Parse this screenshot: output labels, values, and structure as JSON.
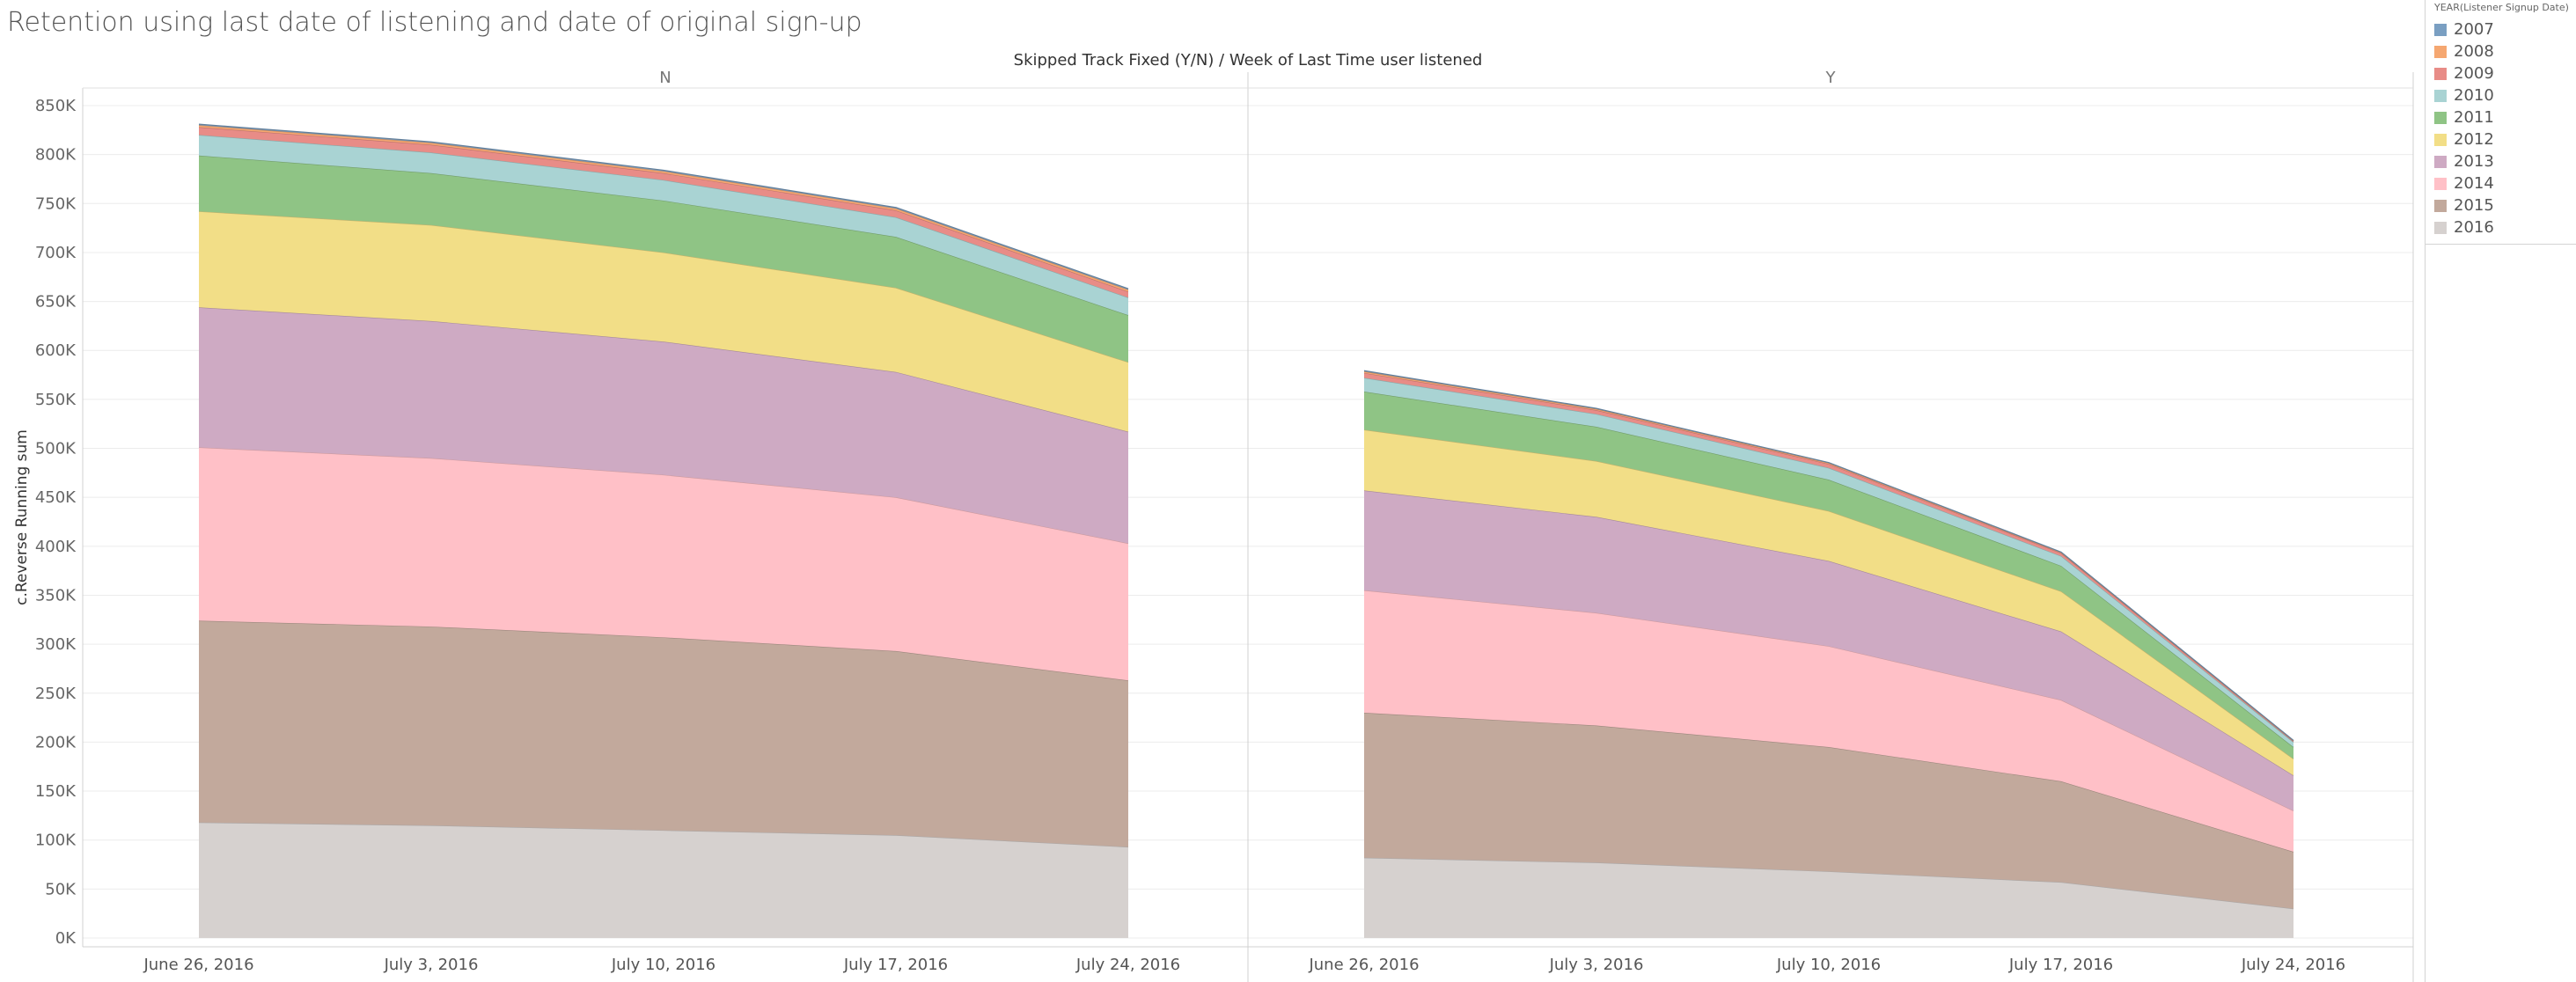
{
  "page": {
    "title": "Retention using last date of listening and date of original sign-up"
  },
  "legend": {
    "title": "YEAR(Listener Signup Date)",
    "items": [
      {
        "label": "2007",
        "color": "#7a9fc2"
      },
      {
        "label": "2008",
        "color": "#f5a771"
      },
      {
        "label": "2009",
        "color": "#e88c87"
      },
      {
        "label": "2010",
        "color": "#a9d3d3"
      },
      {
        "label": "2011",
        "color": "#8fc485"
      },
      {
        "label": "2012",
        "color": "#f2de87"
      },
      {
        "label": "2013",
        "color": "#ceaac3"
      },
      {
        "label": "2014",
        "color": "#ffc0c7"
      },
      {
        "label": "2015",
        "color": "#c2a99c"
      },
      {
        "label": "2016",
        "color": "#d6d1cf"
      }
    ]
  },
  "chart_data": {
    "type": "area",
    "header": "Skipped Track Fixed (Y/N)  /  Week of Last Time user listened",
    "ylabel": "c.Reverse Running sum",
    "ylim": [
      0,
      850000
    ],
    "yticks": [
      0,
      50000,
      100000,
      150000,
      200000,
      250000,
      300000,
      350000,
      400000,
      450000,
      500000,
      550000,
      600000,
      650000,
      700000,
      750000,
      800000,
      850000
    ],
    "ytick_labels": [
      "0K",
      "50K",
      "100K",
      "150K",
      "200K",
      "250K",
      "300K",
      "350K",
      "400K",
      "450K",
      "500K",
      "550K",
      "600K",
      "650K",
      "700K",
      "750K",
      "800K",
      "850K"
    ],
    "categories": [
      "June 26, 2016",
      "July 3, 2016",
      "July 10, 2016",
      "July 17, 2016",
      "July 24, 2016"
    ],
    "stacked": true,
    "grid": true,
    "legend_position": "right",
    "panels": [
      {
        "label": "N",
        "series": [
          {
            "name": "2016",
            "values": [
              118000,
              115000,
              110000,
              105000,
              93000
            ]
          },
          {
            "name": "2015",
            "values": [
              206000,
              203000,
              197000,
              188000,
              170000
            ]
          },
          {
            "name": "2014",
            "values": [
              177000,
              172000,
              166000,
              157000,
              140000
            ]
          },
          {
            "name": "2013",
            "values": [
              143000,
              140000,
              136000,
              128000,
              114000
            ]
          },
          {
            "name": "2012",
            "values": [
              98000,
              98000,
              91000,
              86000,
              71000
            ]
          },
          {
            "name": "2011",
            "values": [
              57000,
              53000,
              53000,
              52000,
              48000
            ]
          },
          {
            "name": "2010",
            "values": [
              21000,
              21000,
              21000,
              20000,
              18000
            ]
          },
          {
            "name": "2009",
            "values": [
              8000,
              8000,
              7000,
              7000,
              6000
            ]
          },
          {
            "name": "2008",
            "values": [
              2000,
              2000,
              2000,
              2000,
              2000
            ]
          },
          {
            "name": "2007",
            "values": [
              1000,
              1000,
              1000,
              1000,
              1000
            ]
          }
        ]
      },
      {
        "label": "Y",
        "series": [
          {
            "name": "2016",
            "values": [
              82000,
              77000,
              68000,
              57000,
              30000
            ]
          },
          {
            "name": "2015",
            "values": [
              148000,
              140000,
              127000,
              103000,
              58000
            ]
          },
          {
            "name": "2014",
            "values": [
              125000,
              115000,
              103000,
              83000,
              42000
            ]
          },
          {
            "name": "2013",
            "values": [
              102000,
              98000,
              87000,
              70000,
              36000
            ]
          },
          {
            "name": "2012",
            "values": [
              62000,
              57000,
              51000,
              41000,
              17000
            ]
          },
          {
            "name": "2011",
            "values": [
              39000,
              35000,
              32000,
              26000,
              12000
            ]
          },
          {
            "name": "2010",
            "values": [
              14000,
              13000,
              12000,
              10000,
              5000
            ]
          },
          {
            "name": "2009",
            "values": [
              5000,
              4000,
              4000,
              3000,
              1000
            ]
          },
          {
            "name": "2008",
            "values": [
              1500,
              1200,
              1000,
              700,
              500
            ]
          },
          {
            "name": "2007",
            "values": [
              800,
              600,
              500,
              400,
              300
            ]
          }
        ]
      }
    ]
  }
}
